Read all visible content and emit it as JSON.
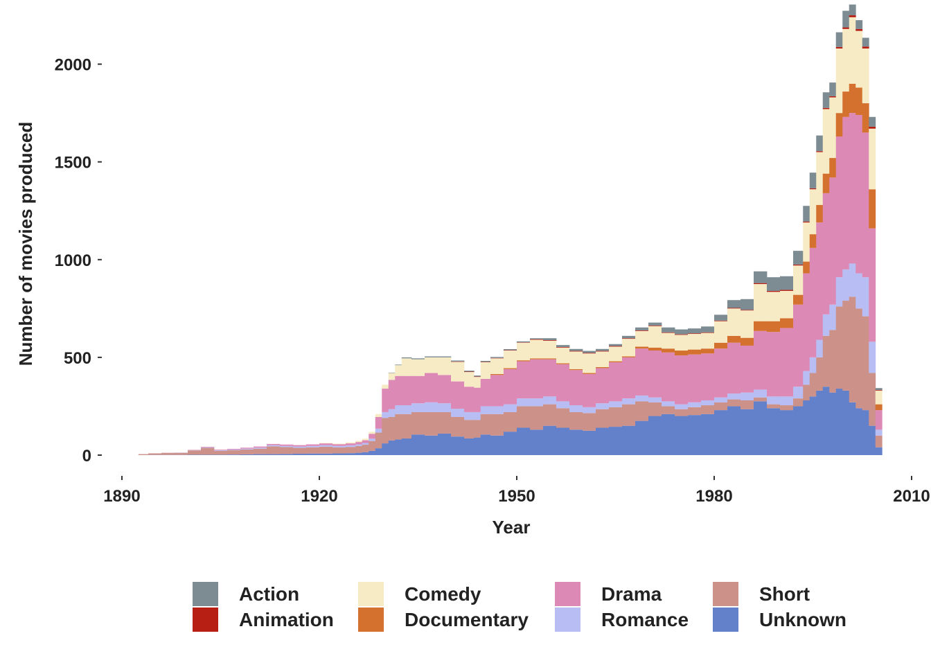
{
  "chart_data": {
    "type": "area",
    "subtype": "stacked-step-histogram",
    "title": "",
    "xlabel": "Year",
    "ylabel": "Number of movies produced",
    "xlim": [
      1890,
      2010
    ],
    "ylim": [
      0,
      2200
    ],
    "x_ticks": [
      1890,
      1920,
      1950,
      1980,
      2010
    ],
    "y_ticks": [
      0,
      500,
      1000,
      1500,
      2000
    ],
    "grid": false,
    "legend_position": "bottom",
    "stack_order": [
      "Unknown",
      "Short",
      "Romance",
      "Drama",
      "Documentary",
      "Comedy",
      "Animation",
      "Action"
    ],
    "x": [
      1893,
      1895,
      1897,
      1899,
      1901,
      1903,
      1905,
      1907,
      1909,
      1911,
      1913,
      1915,
      1917,
      1919,
      1921,
      1923,
      1925,
      1926,
      1927,
      1928,
      1929,
      1930,
      1931,
      1932,
      1933,
      1935,
      1937,
      1939,
      1941,
      1943,
      1944,
      1945,
      1947,
      1949,
      1951,
      1953,
      1955,
      1957,
      1959,
      1961,
      1963,
      1965,
      1967,
      1969,
      1971,
      1973,
      1975,
      1977,
      1979,
      1981,
      1983,
      1985,
      1987,
      1989,
      1991,
      1993,
      1994,
      1995,
      1996,
      1997,
      1998,
      1999,
      2000,
      2001,
      2002,
      2003,
      2004,
      2005
    ],
    "series": [
      {
        "name": "Unknown",
        "color": "#6380cb",
        "values": [
          0,
          1,
          1,
          1,
          2,
          2,
          2,
          3,
          4,
          5,
          5,
          6,
          7,
          8,
          8,
          9,
          10,
          12,
          15,
          22,
          35,
          60,
          75,
          80,
          85,
          105,
          100,
          110,
          95,
          85,
          90,
          105,
          100,
          120,
          140,
          130,
          150,
          140,
          130,
          125,
          140,
          145,
          150,
          175,
          200,
          210,
          200,
          205,
          210,
          230,
          250,
          235,
          275,
          240,
          230,
          250,
          280,
          300,
          330,
          350,
          320,
          340,
          330,
          270,
          240,
          230,
          150,
          40
        ]
      },
      {
        "name": "Short",
        "color": "#cc9189",
        "values": [
          5,
          8,
          10,
          10,
          22,
          35,
          20,
          22,
          25,
          28,
          40,
          35,
          30,
          32,
          35,
          30,
          32,
          35,
          38,
          50,
          80,
          130,
          120,
          130,
          125,
          115,
          120,
          110,
          100,
          95,
          90,
          105,
          110,
          100,
          110,
          120,
          110,
          100,
          90,
          90,
          95,
          100,
          110,
          100,
          70,
          40,
          35,
          40,
          45,
          40,
          35,
          45,
          20,
          20,
          25,
          40,
          80,
          120,
          170,
          260,
          320,
          420,
          460,
          540,
          510,
          480,
          270,
          60
        ]
      },
      {
        "name": "Romance",
        "color": "#b8bdf3",
        "values": [
          0,
          0,
          0,
          1,
          1,
          2,
          3,
          3,
          4,
          5,
          6,
          6,
          7,
          7,
          8,
          8,
          8,
          8,
          9,
          12,
          20,
          30,
          40,
          45,
          45,
          45,
          50,
          45,
          42,
          40,
          40,
          40,
          40,
          40,
          40,
          40,
          40,
          35,
          35,
          30,
          30,
          30,
          30,
          30,
          25,
          25,
          25,
          25,
          25,
          25,
          30,
          40,
          40,
          40,
          45,
          60,
          70,
          80,
          90,
          110,
          130,
          150,
          160,
          170,
          180,
          200,
          160,
          30
        ]
      },
      {
        "name": "Drama",
        "color": "#dd89b6",
        "values": [
          0,
          0,
          1,
          1,
          2,
          3,
          3,
          4,
          5,
          6,
          6,
          7,
          7,
          8,
          9,
          9,
          10,
          12,
          14,
          25,
          60,
          120,
          150,
          150,
          150,
          140,
          150,
          145,
          140,
          130,
          125,
          140,
          160,
          180,
          190,
          200,
          190,
          190,
          180,
          170,
          180,
          200,
          210,
          240,
          240,
          250,
          250,
          245,
          240,
          250,
          260,
          240,
          300,
          330,
          350,
          420,
          500,
          560,
          600,
          620,
          650,
          720,
          780,
          770,
          810,
          740,
          580,
          100
        ]
      },
      {
        "name": "Documentary",
        "color": "#d4712e",
        "values": [
          0,
          0,
          0,
          0,
          0,
          0,
          0,
          0,
          0,
          0,
          0,
          0,
          0,
          0,
          0,
          0,
          0,
          0,
          0,
          0,
          0,
          0,
          0,
          0,
          0,
          0,
          0,
          0,
          0,
          0,
          0,
          0,
          5,
          5,
          5,
          5,
          5,
          5,
          5,
          5,
          5,
          5,
          5,
          10,
          15,
          20,
          25,
          25,
          25,
          30,
          35,
          40,
          50,
          55,
          50,
          50,
          60,
          70,
          90,
          100,
          100,
          120,
          130,
          150,
          140,
          150,
          200,
          30
        ]
      },
      {
        "name": "Comedy",
        "color": "#f7ebc6",
        "values": [
          0,
          0,
          0,
          0,
          0,
          0,
          0,
          0,
          0,
          0,
          0,
          0,
          0,
          0,
          2,
          3,
          5,
          6,
          8,
          10,
          15,
          20,
          35,
          55,
          90,
          85,
          80,
          90,
          100,
          75,
          55,
          85,
          80,
          90,
          90,
          95,
          90,
          80,
          90,
          100,
          80,
          75,
          90,
          80,
          110,
          80,
          80,
          80,
          80,
          110,
          140,
          140,
          190,
          150,
          140,
          150,
          200,
          230,
          270,
          330,
          310,
          330,
          320,
          340,
          290,
          280,
          310,
          70
        ]
      },
      {
        "name": "Animation",
        "color": "#b81f14",
        "values": [
          0,
          0,
          0,
          0,
          0,
          0,
          0,
          0,
          0,
          0,
          0,
          0,
          0,
          0,
          0,
          0,
          0,
          0,
          0,
          0,
          0,
          0,
          0,
          0,
          0,
          0,
          0,
          0,
          2,
          2,
          2,
          2,
          2,
          2,
          2,
          3,
          3,
          3,
          3,
          3,
          3,
          3,
          3,
          3,
          3,
          3,
          3,
          3,
          3,
          3,
          3,
          3,
          5,
          5,
          5,
          5,
          5,
          5,
          5,
          6,
          6,
          8,
          8,
          10,
          10,
          10,
          10,
          3
        ]
      },
      {
        "name": "Action",
        "color": "#7c8c92",
        "values": [
          0,
          0,
          0,
          0,
          0,
          0,
          0,
          0,
          0,
          0,
          0,
          0,
          0,
          0,
          0,
          0,
          0,
          0,
          0,
          0,
          0,
          0,
          2,
          3,
          5,
          5,
          5,
          5,
          5,
          5,
          5,
          5,
          5,
          5,
          5,
          5,
          10,
          10,
          10,
          10,
          10,
          10,
          12,
          15,
          15,
          25,
          25,
          25,
          30,
          30,
          40,
          55,
          60,
          70,
          70,
          70,
          80,
          80,
          80,
          80,
          70,
          75,
          85,
          55,
          45,
          45,
          50,
          10
        ]
      }
    ]
  }
}
